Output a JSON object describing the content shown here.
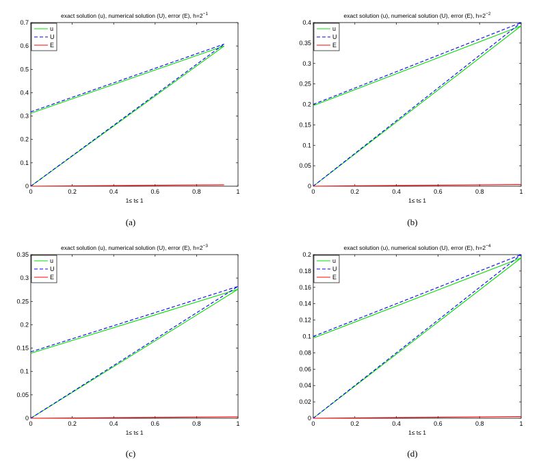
{
  "chart_data": [
    {
      "type": "line",
      "title": "exact solution (u), numerical solution (U), error (E), h=2",
      "title_exponent": "−1",
      "xlabel": "1≤ t≤ 1",
      "caption": "(a)",
      "xlim": [
        0,
        1
      ],
      "ylim": [
        0,
        0.7
      ],
      "xticks": [
        0,
        0.2,
        0.4,
        0.6,
        0.8,
        1
      ],
      "xtick_labels": [
        "0",
        "0.2",
        "0.4",
        "0.6",
        "0.8",
        "1"
      ],
      "yticks": [
        0,
        0.1,
        0.2,
        0.3,
        0.4,
        0.5,
        0.6,
        0.7
      ],
      "ytick_labels": [
        "0",
        "0.1",
        "0.2",
        "0.3",
        "0.4",
        "0.5",
        "0.6",
        "0.7"
      ],
      "legend_position": "top-left",
      "series": [
        {
          "name": "u",
          "color": "#00dd00",
          "style": "solid",
          "x": [
            0,
            0.933,
            0,
            0.933
          ],
          "y": [
            0.312,
            0.6,
            0,
            0.6
          ]
        },
        {
          "name": "U",
          "color": "#0000ff",
          "style": "dashed",
          "x": [
            0,
            0.933,
            0,
            0.933
          ],
          "y": [
            0.318,
            0.608,
            0,
            0.608
          ]
        },
        {
          "name": "E",
          "color": "#ff0000",
          "style": "solid",
          "x": [
            0,
            0.933
          ],
          "y": [
            0,
            0.006
          ]
        }
      ]
    },
    {
      "type": "line",
      "title": "exact solution (u), numerical solution (U), error (E), h=2",
      "title_exponent": "−2",
      "xlabel": "1≤ t≤ 1",
      "caption": "(b)",
      "xlim": [
        0,
        1
      ],
      "ylim": [
        0,
        0.4
      ],
      "xticks": [
        0,
        0.2,
        0.4,
        0.6,
        0.8,
        1
      ],
      "xtick_labels": [
        "0",
        "0.2",
        "0.4",
        "0.6",
        "0.8",
        "1"
      ],
      "yticks": [
        0,
        0.05,
        0.1,
        0.15,
        0.2,
        0.25,
        0.3,
        0.35,
        0.4
      ],
      "ytick_labels": [
        "0",
        "0.05",
        "0.1",
        "0.15",
        "0.2",
        "0.25",
        "0.3",
        "0.35",
        "0.4"
      ],
      "legend_position": "top-left",
      "series": [
        {
          "name": "u",
          "color": "#00dd00",
          "style": "solid",
          "x": [
            0,
            1,
            0,
            1
          ],
          "y": [
            0.197,
            0.392,
            0,
            0.392
          ]
        },
        {
          "name": "U",
          "color": "#0000ff",
          "style": "dashed",
          "x": [
            0,
            1,
            0,
            1
          ],
          "y": [
            0.2,
            0.4,
            0,
            0.4
          ]
        },
        {
          "name": "E",
          "color": "#ff0000",
          "style": "solid",
          "x": [
            0,
            1
          ],
          "y": [
            0,
            0.004
          ]
        }
      ]
    },
    {
      "type": "line",
      "title": "exact solution (u), numerical solution (U), error (E), h=2",
      "title_exponent": "−3",
      "xlabel": "1≤ t≤ 1",
      "caption": "(c)",
      "xlim": [
        0,
        1
      ],
      "ylim": [
        0,
        0.35
      ],
      "xticks": [
        0,
        0.2,
        0.4,
        0.6,
        0.8,
        1
      ],
      "xtick_labels": [
        "0",
        "0.2",
        "0.4",
        "0.6",
        "0.8",
        "1"
      ],
      "yticks": [
        0,
        0.05,
        0.1,
        0.15,
        0.2,
        0.25,
        0.3,
        0.35
      ],
      "ytick_labels": [
        "0",
        "0.05",
        "0.1",
        "0.15",
        "0.2",
        "0.25",
        "0.3",
        "0.35"
      ],
      "legend_position": "top-left",
      "series": [
        {
          "name": "u",
          "color": "#00dd00",
          "style": "solid",
          "x": [
            0,
            1,
            0,
            1
          ],
          "y": [
            0.139,
            0.276,
            0,
            0.276
          ]
        },
        {
          "name": "U",
          "color": "#0000ff",
          "style": "dashed",
          "x": [
            0,
            1,
            0,
            1
          ],
          "y": [
            0.142,
            0.282,
            0,
            0.282
          ]
        },
        {
          "name": "E",
          "color": "#ff0000",
          "style": "solid",
          "x": [
            0,
            1
          ],
          "y": [
            0,
            0.003
          ]
        }
      ]
    },
    {
      "type": "line",
      "title": "exact solution (u), numerical solution (U), error (E), h=2",
      "title_exponent": "−4",
      "xlabel": "1≤ t≤ 1",
      "caption": "(d)",
      "xlim": [
        0,
        1
      ],
      "ylim": [
        0,
        0.2
      ],
      "xticks": [
        0,
        0.2,
        0.4,
        0.6,
        0.8,
        1
      ],
      "xtick_labels": [
        "0",
        "0.2",
        "0.4",
        "0.6",
        "0.8",
        "1"
      ],
      "yticks": [
        0,
        0.02,
        0.04,
        0.06,
        0.08,
        0.1,
        0.12,
        0.14,
        0.16,
        0.18,
        0.2
      ],
      "ytick_labels": [
        "0",
        "0.02",
        "0.04",
        "0.06",
        "0.08",
        "0.1",
        "0.12",
        "0.14",
        "0.16",
        "0.18",
        "0.2"
      ],
      "legend_position": "top-left",
      "series": [
        {
          "name": "u",
          "color": "#00dd00",
          "style": "solid",
          "x": [
            0,
            1,
            0,
            1
          ],
          "y": [
            0.098,
            0.196,
            0,
            0.196
          ]
        },
        {
          "name": "U",
          "color": "#0000ff",
          "style": "dashed",
          "x": [
            0,
            1,
            0,
            1
          ],
          "y": [
            0.1,
            0.2,
            0,
            0.2
          ]
        },
        {
          "name": "E",
          "color": "#ff0000",
          "style": "solid",
          "x": [
            0,
            1
          ],
          "y": [
            0,
            0.002
          ]
        }
      ]
    }
  ]
}
